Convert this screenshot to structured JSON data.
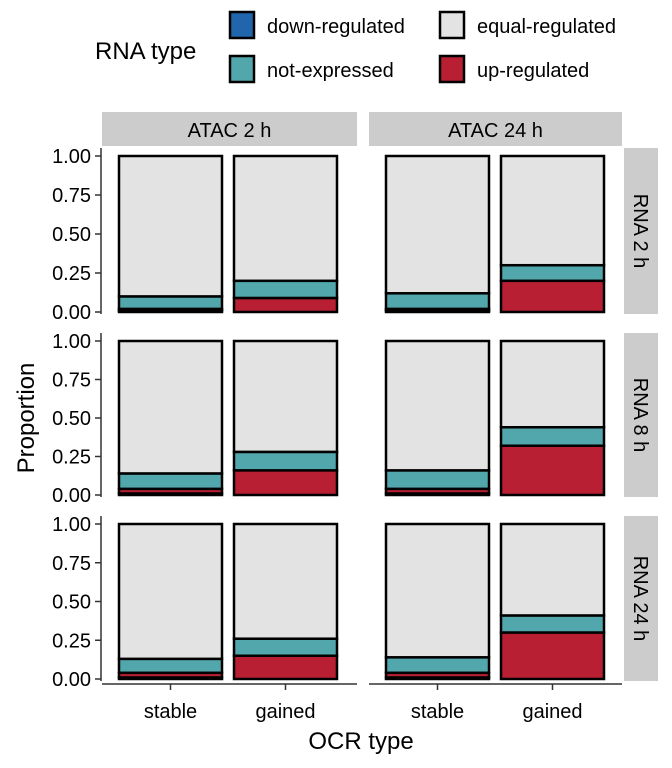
{
  "chart_data": {
    "type": "bar",
    "stacked": true,
    "faceted": true,
    "xlabel": "OCR type",
    "ylabel": "Proportion",
    "ylim": [
      0,
      1
    ],
    "y_ticks": [
      "0.00",
      "0.25",
      "0.50",
      "0.75",
      "1.00"
    ],
    "categories": [
      "stable",
      "gained"
    ],
    "legend": {
      "title": "RNA type",
      "position": "top",
      "items": [
        {
          "label": "down-regulated",
          "color": "#2166ac"
        },
        {
          "label": "equal-regulated",
          "color": "#e3e3e3"
        },
        {
          "label": "not-expressed",
          "color": "#52a7ad"
        },
        {
          "label": "up-regulated",
          "color": "#b81f32"
        }
      ]
    },
    "stack_order_bottom_to_top": [
      "down-regulated",
      "up-regulated",
      "not-expressed",
      "equal-regulated"
    ],
    "col_facets": [
      "ATAC 2 h",
      "ATAC 24 h"
    ],
    "row_facets": [
      "RNA 2 h",
      "RNA 8 h",
      "RNA 24 h"
    ],
    "panels": [
      {
        "row": "RNA 2 h",
        "col": "ATAC 2 h",
        "bars": [
          {
            "category": "stable",
            "down-regulated": 0.01,
            "up-regulated": 0.01,
            "not-expressed": 0.08,
            "equal-regulated": 0.9
          },
          {
            "category": "gained",
            "down-regulated": 0.0,
            "up-regulated": 0.09,
            "not-expressed": 0.11,
            "equal-regulated": 0.8
          }
        ]
      },
      {
        "row": "RNA 2 h",
        "col": "ATAC 24 h",
        "bars": [
          {
            "category": "stable",
            "down-regulated": 0.01,
            "up-regulated": 0.01,
            "not-expressed": 0.1,
            "equal-regulated": 0.88
          },
          {
            "category": "gained",
            "down-regulated": 0.0,
            "up-regulated": 0.2,
            "not-expressed": 0.1,
            "equal-regulated": 0.7
          }
        ]
      },
      {
        "row": "RNA 8 h",
        "col": "ATAC 2 h",
        "bars": [
          {
            "category": "stable",
            "down-regulated": 0.01,
            "up-regulated": 0.03,
            "not-expressed": 0.1,
            "equal-regulated": 0.86
          },
          {
            "category": "gained",
            "down-regulated": 0.0,
            "up-regulated": 0.16,
            "not-expressed": 0.12,
            "equal-regulated": 0.72
          }
        ]
      },
      {
        "row": "RNA 8 h",
        "col": "ATAC 24 h",
        "bars": [
          {
            "category": "stable",
            "down-regulated": 0.01,
            "up-regulated": 0.03,
            "not-expressed": 0.12,
            "equal-regulated": 0.84
          },
          {
            "category": "gained",
            "down-regulated": 0.0,
            "up-regulated": 0.32,
            "not-expressed": 0.12,
            "equal-regulated": 0.56
          }
        ]
      },
      {
        "row": "RNA 24 h",
        "col": "ATAC 2 h",
        "bars": [
          {
            "category": "stable",
            "down-regulated": 0.01,
            "up-regulated": 0.03,
            "not-expressed": 0.09,
            "equal-regulated": 0.87
          },
          {
            "category": "gained",
            "down-regulated": 0.0,
            "up-regulated": 0.15,
            "not-expressed": 0.11,
            "equal-regulated": 0.74
          }
        ]
      },
      {
        "row": "RNA 24 h",
        "col": "ATAC 24 h",
        "bars": [
          {
            "category": "stable",
            "down-regulated": 0.01,
            "up-regulated": 0.03,
            "not-expressed": 0.1,
            "equal-regulated": 0.86
          },
          {
            "category": "gained",
            "down-regulated": 0.0,
            "up-regulated": 0.3,
            "not-expressed": 0.11,
            "equal-regulated": 0.59
          }
        ]
      }
    ]
  }
}
